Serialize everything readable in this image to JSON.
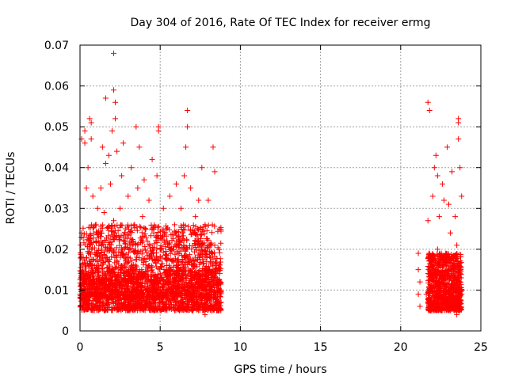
{
  "chart_data": {
    "type": "scatter",
    "title": "Day 304 of 2016, Rate Of TEC Index for receiver ermg",
    "xlabel": "GPS time / hours",
    "ylabel": "ROTI / TECUs",
    "xlim": [
      0,
      25
    ],
    "ylim": [
      0,
      0.07
    ],
    "xticks": [
      0,
      5,
      10,
      15,
      20,
      25
    ],
    "xtick_labels": [
      "0",
      "5",
      "10",
      "15",
      "20",
      "25"
    ],
    "yticks": [
      0,
      0.01,
      0.02,
      0.03,
      0.04,
      0.05,
      0.06,
      0.07
    ],
    "ytick_labels": [
      "0",
      "0.01",
      "0.02",
      "0.03",
      "0.04",
      "0.05",
      "0.06",
      "0.07"
    ],
    "grid": true,
    "marker": "plus",
    "color": "#ff0000",
    "series": [
      {
        "name": "ROTI",
        "points": [
          [
            0.0,
            0.009
          ],
          [
            0.1,
            0.024
          ],
          [
            0.1,
            0.047
          ],
          [
            0.2,
            0.012
          ],
          [
            0.2,
            0.018
          ],
          [
            0.3,
            0.049
          ],
          [
            0.3,
            0.008
          ],
          [
            0.3,
            0.046
          ],
          [
            0.4,
            0.014
          ],
          [
            0.4,
            0.035
          ],
          [
            0.5,
            0.007
          ],
          [
            0.5,
            0.04
          ],
          [
            0.6,
            0.021
          ],
          [
            0.6,
            0.052
          ],
          [
            0.6,
            0.011
          ],
          [
            0.7,
            0.051
          ],
          [
            0.7,
            0.047
          ],
          [
            0.8,
            0.009
          ],
          [
            0.8,
            0.033
          ],
          [
            0.9,
            0.016
          ],
          [
            1.0,
            0.026
          ],
          [
            1.0,
            0.012
          ],
          [
            1.1,
            0.03
          ],
          [
            1.2,
            0.008
          ],
          [
            1.3,
            0.022
          ],
          [
            1.3,
            0.035
          ],
          [
            1.4,
            0.045
          ],
          [
            1.5,
            0.014
          ],
          [
            1.5,
            0.029
          ],
          [
            1.6,
            0.057
          ],
          [
            1.6,
            0.041
          ],
          [
            1.7,
            0.01
          ],
          [
            1.7,
            0.02
          ],
          [
            1.8,
            0.043
          ],
          [
            1.9,
            0.036
          ],
          [
            2.0,
            0.012
          ],
          [
            2.0,
            0.049
          ],
          [
            2.1,
            0.027
          ],
          [
            2.1,
            0.068
          ],
          [
            2.1,
            0.059
          ],
          [
            2.2,
            0.052
          ],
          [
            2.2,
            0.056
          ],
          [
            2.3,
            0.018
          ],
          [
            2.3,
            0.044
          ],
          [
            2.4,
            0.009
          ],
          [
            2.5,
            0.03
          ],
          [
            2.6,
            0.038
          ],
          [
            2.7,
            0.014
          ],
          [
            2.7,
            0.046
          ],
          [
            2.8,
            0.024
          ],
          [
            2.9,
            0.011
          ],
          [
            3.0,
            0.033
          ],
          [
            3.1,
            0.02
          ],
          [
            3.2,
            0.04
          ],
          [
            3.3,
            0.006
          ],
          [
            3.4,
            0.026
          ],
          [
            3.5,
            0.05
          ],
          [
            3.5,
            0.015
          ],
          [
            3.6,
            0.035
          ],
          [
            3.7,
            0.045
          ],
          [
            3.8,
            0.01
          ],
          [
            3.9,
            0.028
          ],
          [
            4.0,
            0.037
          ],
          [
            4.1,
            0.017
          ],
          [
            4.2,
            0.022
          ],
          [
            4.3,
            0.032
          ],
          [
            4.4,
            0.008
          ],
          [
            4.5,
            0.042
          ],
          [
            4.6,
            0.024
          ],
          [
            4.7,
            0.012
          ],
          [
            4.8,
            0.038
          ],
          [
            4.9,
            0.05
          ],
          [
            4.9,
            0.049
          ],
          [
            5.0,
            0.02
          ],
          [
            5.1,
            0.011
          ],
          [
            5.2,
            0.03
          ],
          [
            5.3,
            0.009
          ],
          [
            5.4,
            0.025
          ],
          [
            5.5,
            0.015
          ],
          [
            5.6,
            0.033
          ],
          [
            5.7,
            0.02
          ],
          [
            5.8,
            0.012
          ],
          [
            5.9,
            0.026
          ],
          [
            6.0,
            0.036
          ],
          [
            6.1,
            0.01
          ],
          [
            6.2,
            0.022
          ],
          [
            6.3,
            0.03
          ],
          [
            6.4,
            0.014
          ],
          [
            6.5,
            0.038
          ],
          [
            6.6,
            0.045
          ],
          [
            6.7,
            0.054
          ],
          [
            6.7,
            0.05
          ],
          [
            6.8,
            0.017
          ],
          [
            6.9,
            0.035
          ],
          [
            7.0,
            0.009
          ],
          [
            7.1,
            0.024
          ],
          [
            7.2,
            0.028
          ],
          [
            7.3,
            0.012
          ],
          [
            7.4,
            0.032
          ],
          [
            7.5,
            0.019
          ],
          [
            7.6,
            0.04
          ],
          [
            7.7,
            0.01
          ],
          [
            7.8,
            0.026
          ],
          [
            7.9,
            0.015
          ],
          [
            8.0,
            0.032
          ],
          [
            8.1,
            0.008
          ],
          [
            8.2,
            0.021
          ],
          [
            8.3,
            0.045
          ],
          [
            8.4,
            0.039
          ],
          [
            8.5,
            0.014
          ],
          [
            8.6,
            0.009
          ],
          [
            8.7,
            0.025
          ],
          [
            8.8,
            0.007
          ],
          [
            0.2,
            0.006
          ],
          [
            0.5,
            0.013
          ],
          [
            0.8,
            0.005
          ],
          [
            1.1,
            0.017
          ],
          [
            1.4,
            0.006
          ],
          [
            1.8,
            0.011
          ],
          [
            2.2,
            0.007
          ],
          [
            2.6,
            0.016
          ],
          [
            3.0,
            0.005
          ],
          [
            3.4,
            0.013
          ],
          [
            3.8,
            0.006
          ],
          [
            4.2,
            0.011
          ],
          [
            4.6,
            0.005
          ],
          [
            5.0,
            0.014
          ],
          [
            5.4,
            0.006
          ],
          [
            5.8,
            0.012
          ],
          [
            6.2,
            0.005
          ],
          [
            6.6,
            0.013
          ],
          [
            7.0,
            0.005
          ],
          [
            7.4,
            0.011
          ],
          [
            7.8,
            0.004
          ],
          [
            8.2,
            0.012
          ],
          [
            8.6,
            0.005
          ],
          [
            21.1,
            0.015
          ],
          [
            21.1,
            0.019
          ],
          [
            21.1,
            0.009
          ],
          [
            21.2,
            0.006
          ],
          [
            21.2,
            0.012
          ],
          [
            21.6,
            0.009
          ],
          [
            21.7,
            0.027
          ],
          [
            21.7,
            0.056
          ],
          [
            21.8,
            0.054
          ],
          [
            21.9,
            0.014
          ],
          [
            22.0,
            0.033
          ],
          [
            22.1,
            0.04
          ],
          [
            22.2,
            0.043
          ],
          [
            22.3,
            0.02
          ],
          [
            22.3,
            0.038
          ],
          [
            22.4,
            0.028
          ],
          [
            22.5,
            0.011
          ],
          [
            22.6,
            0.036
          ],
          [
            22.7,
            0.032
          ],
          [
            22.8,
            0.017
          ],
          [
            22.9,
            0.045
          ],
          [
            23.0,
            0.009
          ],
          [
            23.0,
            0.031
          ],
          [
            23.1,
            0.024
          ],
          [
            23.2,
            0.039
          ],
          [
            23.3,
            0.013
          ],
          [
            23.4,
            0.028
          ],
          [
            23.5,
            0.021
          ],
          [
            23.5,
            0.004
          ],
          [
            23.6,
            0.047
          ],
          [
            23.6,
            0.051
          ],
          [
            23.6,
            0.052
          ],
          [
            23.7,
            0.04
          ],
          [
            23.7,
            0.015
          ],
          [
            23.8,
            0.033
          ],
          [
            23.8,
            0.01
          ],
          [
            21.9,
            0.006
          ],
          [
            22.3,
            0.008
          ],
          [
            22.7,
            0.007
          ],
          [
            23.1,
            0.008
          ],
          [
            23.5,
            0.007
          ],
          [
            23.8,
            0.009
          ]
        ],
        "dense_bands": [
          {
            "x": [
              0.0,
              8.8
            ],
            "y": [
              0.005,
              0.015
            ]
          },
          {
            "x": [
              0.0,
              8.8
            ],
            "y": [
              0.008,
              0.026
            ]
          },
          {
            "x": [
              21.7,
              23.8
            ],
            "y": [
              0.005,
              0.019
            ]
          }
        ]
      }
    ]
  }
}
